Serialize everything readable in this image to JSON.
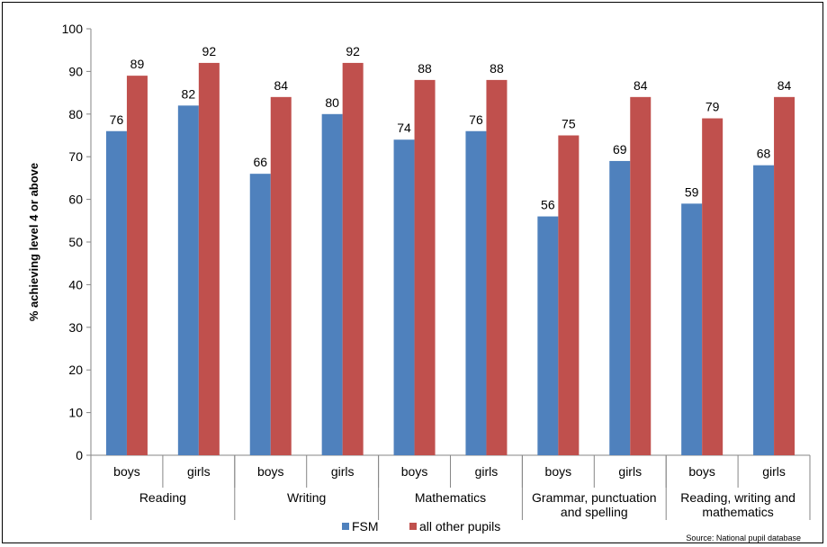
{
  "chart_data": {
    "type": "bar",
    "ylabel": "% achieving level 4 or above",
    "ylim": [
      0,
      100
    ],
    "yticks": [
      0,
      10,
      20,
      30,
      40,
      50,
      60,
      70,
      80,
      90,
      100
    ],
    "groups": [
      {
        "label": [
          "Reading"
        ],
        "subcategories": [
          "boys",
          "girls"
        ]
      },
      {
        "label": [
          "Writing"
        ],
        "subcategories": [
          "boys",
          "girls"
        ]
      },
      {
        "label": [
          "Mathematics"
        ],
        "subcategories": [
          "boys",
          "girls"
        ]
      },
      {
        "label": [
          "Grammar, punctuation",
          "and spelling"
        ],
        "subcategories": [
          "boys",
          "girls"
        ]
      },
      {
        "label": [
          "Reading, writing and",
          "mathematics"
        ],
        "subcategories": [
          "boys",
          "girls"
        ]
      }
    ],
    "series": [
      {
        "name": "FSM",
        "color": "#4F81BD",
        "values": [
          76,
          82,
          66,
          80,
          74,
          76,
          56,
          69,
          59,
          68
        ]
      },
      {
        "name": "all other pupils",
        "color": "#C0504D",
        "values": [
          89,
          92,
          84,
          92,
          88,
          88,
          75,
          84,
          79,
          84
        ]
      }
    ],
    "legend_position": "bottom",
    "grid": false
  },
  "source_note": "Source: National pupil database"
}
